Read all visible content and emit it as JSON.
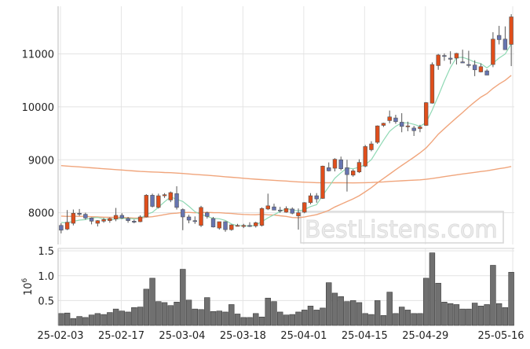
{
  "chart_data": [
    {
      "type": "candlestick",
      "title": "",
      "xlabel": "",
      "ylabel": "",
      "ylim": [
        7400,
        11900
      ],
      "y_ticks": [
        8000,
        9000,
        10000,
        11000
      ],
      "x_tick_labels": [
        "25-02-03",
        "25-02-17",
        "25-03-04",
        "25-03-18",
        "25-04-01",
        "25-04-15",
        "25-04-29",
        "25-05-16"
      ],
      "colors": {
        "up": "#e04e1b",
        "down": "#6674b0",
        "ma_short": "#8fd9b4",
        "ma_long": "#f0a57c",
        "ma_mid": "#f0a57c"
      },
      "ohlc": [
        [
          7760,
          7800,
          7610,
          7670
        ],
        [
          7690,
          8050,
          7670,
          7820
        ],
        [
          7800,
          8060,
          7760,
          7990
        ],
        [
          7990,
          8070,
          7940,
          7970
        ],
        [
          7970,
          8000,
          7870,
          7900
        ],
        [
          7900,
          7910,
          7780,
          7840
        ],
        [
          7800,
          7860,
          7740,
          7850
        ],
        [
          7840,
          7900,
          7810,
          7870
        ],
        [
          7850,
          7910,
          7810,
          7890
        ],
        [
          7880,
          8090,
          7840,
          7950
        ],
        [
          7950,
          7990,
          7880,
          7900
        ],
        [
          7890,
          7920,
          7810,
          7850
        ],
        [
          7840,
          7870,
          7800,
          7820
        ],
        [
          7830,
          7950,
          7820,
          7920
        ],
        [
          7920,
          8350,
          7910,
          8330
        ],
        [
          8330,
          8360,
          8100,
          8120
        ],
        [
          8100,
          8360,
          8080,
          8320
        ],
        [
          8320,
          8370,
          8280,
          8340
        ],
        [
          8240,
          8400,
          8200,
          8380
        ],
        [
          8360,
          8500,
          8060,
          8100
        ],
        [
          8060,
          8080,
          7670,
          7920
        ],
        [
          7920,
          7960,
          7800,
          7860
        ],
        [
          7850,
          7930,
          7790,
          7840
        ],
        [
          7760,
          8130,
          7730,
          8100
        ],
        [
          8000,
          8020,
          7890,
          7930
        ],
        [
          7890,
          7920,
          7720,
          7730
        ],
        [
          7710,
          7830,
          7680,
          7830
        ],
        [
          7830,
          7840,
          7640,
          7680
        ],
        [
          7680,
          7780,
          7660,
          7770
        ],
        [
          7760,
          7790,
          7740,
          7760
        ],
        [
          7740,
          7790,
          7710,
          7760
        ],
        [
          7760,
          7820,
          7730,
          7740
        ],
        [
          7750,
          7830,
          7720,
          7810
        ],
        [
          7760,
          8100,
          7740,
          8080
        ],
        [
          8070,
          8360,
          8050,
          8130
        ],
        [
          8110,
          8170,
          8050,
          8050
        ],
        [
          8050,
          8110,
          8000,
          8040
        ],
        [
          8010,
          8120,
          8000,
          8080
        ],
        [
          8070,
          8100,
          7970,
          7990
        ],
        [
          7940,
          8080,
          7680,
          8000
        ],
        [
          8010,
          8200,
          7990,
          8190
        ],
        [
          8190,
          8370,
          8160,
          8320
        ],
        [
          8320,
          8370,
          8190,
          8260
        ],
        [
          8270,
          8890,
          8260,
          8880
        ],
        [
          8850,
          8950,
          8780,
          8790
        ],
        [
          8840,
          9030,
          8780,
          9010
        ],
        [
          9000,
          9060,
          8800,
          8830
        ],
        [
          8850,
          9000,
          8400,
          8720
        ],
        [
          8710,
          8820,
          8680,
          8790
        ],
        [
          8770,
          9010,
          8750,
          8950
        ],
        [
          8880,
          9280,
          8860,
          9250
        ],
        [
          9190,
          9350,
          9160,
          9300
        ],
        [
          9330,
          9650,
          9300,
          9640
        ],
        [
          9650,
          9700,
          9620,
          9690
        ],
        [
          9740,
          9930,
          9690,
          9810
        ],
        [
          9790,
          9850,
          9680,
          9720
        ],
        [
          9710,
          9880,
          9520,
          9630
        ],
        [
          9630,
          9720,
          9540,
          9640
        ],
        [
          9600,
          9640,
          9450,
          9550
        ],
        [
          9590,
          9660,
          9520,
          9620
        ],
        [
          9650,
          10090,
          9640,
          10080
        ],
        [
          10070,
          10840,
          10060,
          10800
        ],
        [
          10780,
          11000,
          10700,
          10980
        ],
        [
          10970,
          11010,
          10870,
          10960
        ],
        [
          10920,
          11050,
          10810,
          10900
        ],
        [
          10920,
          11020,
          10800,
          11010
        ],
        [
          10850,
          11080,
          10830,
          10830
        ],
        [
          10800,
          11060,
          10740,
          10790
        ],
        [
          10790,
          10880,
          10580,
          10700
        ],
        [
          10660,
          10820,
          10650,
          10760
        ],
        [
          10680,
          10710,
          10600,
          10600
        ],
        [
          10800,
          11410,
          10750,
          11280
        ],
        [
          11350,
          11530,
          11180,
          11270
        ],
        [
          11280,
          11520,
          11100,
          11080
        ],
        [
          11180,
          11750,
          10770,
          11700
        ]
      ],
      "volume_ylim": [
        0,
        1.55
      ],
      "volume_unit_label": "10",
      "volume_unit_exp": "6",
      "volume_y_ticks": [
        0.5,
        1.0,
        1.5
      ],
      "volume_y_tick_labels": [
        "0.5",
        "1.0",
        "1.5"
      ],
      "volume": [
        0.24,
        0.25,
        0.14,
        0.18,
        0.16,
        0.21,
        0.24,
        0.22,
        0.26,
        0.33,
        0.29,
        0.27,
        0.36,
        0.37,
        0.73,
        0.95,
        0.48,
        0.46,
        0.4,
        0.47,
        1.13,
        0.51,
        0.33,
        0.32,
        0.56,
        0.28,
        0.29,
        0.27,
        0.42,
        0.23,
        0.16,
        0.16,
        0.24,
        0.17,
        0.55,
        0.48,
        0.27,
        0.21,
        0.22,
        0.27,
        0.31,
        0.39,
        0.31,
        0.35,
        0.86,
        0.65,
        0.58,
        0.48,
        0.5,
        0.46,
        0.24,
        0.22,
        0.5,
        0.2,
        0.67,
        0.24,
        0.37,
        0.31,
        0.24,
        0.24,
        0.95,
        1.46,
        0.85,
        0.47,
        0.44,
        0.42,
        0.33,
        0.33,
        0.45,
        0.39,
        0.42,
        1.21,
        0.44,
        0.36,
        1.07
      ]
    }
  ],
  "watermark": "BestListens.com"
}
